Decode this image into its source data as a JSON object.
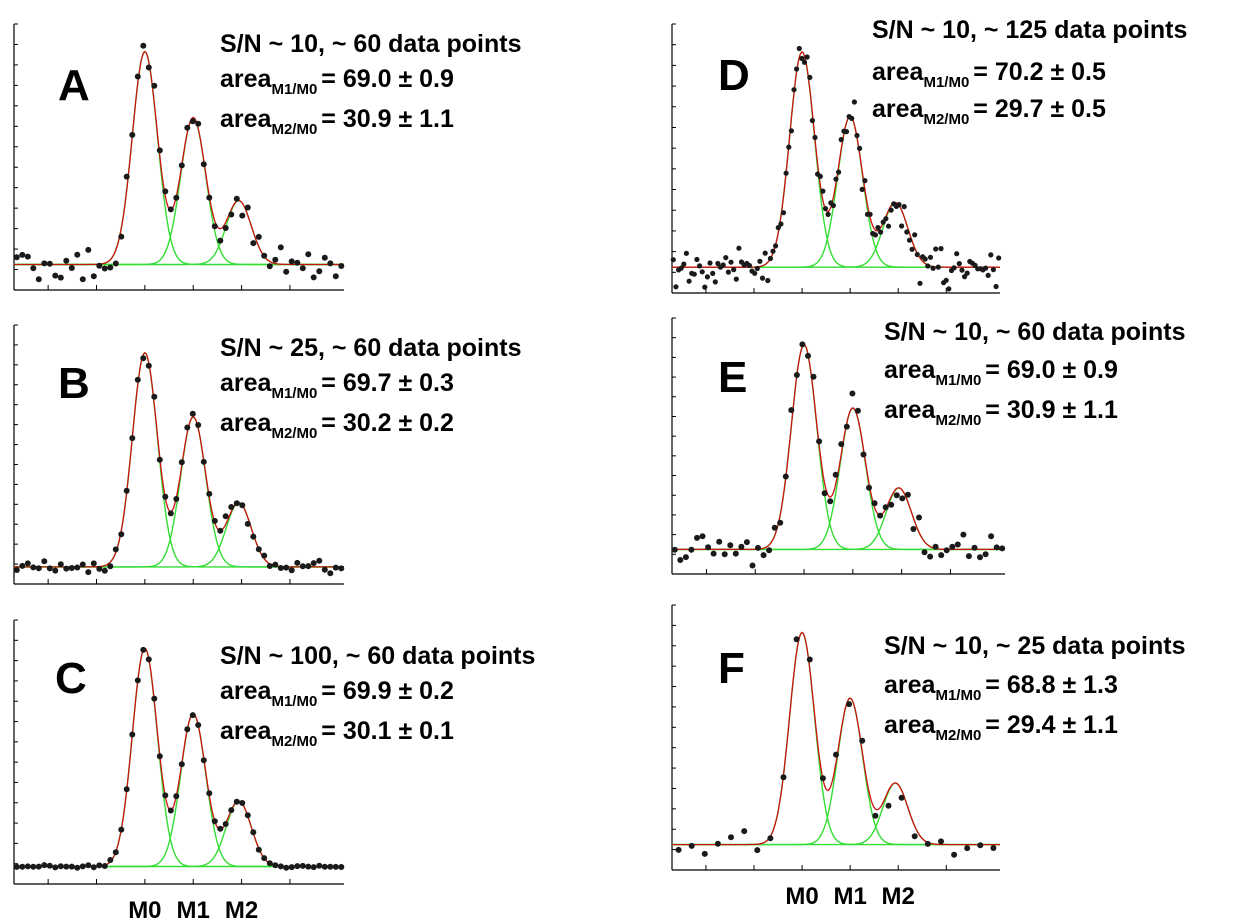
{
  "chart_data": [
    {
      "type": "line",
      "panel_label": "A",
      "x_categories": [
        "",
        "",
        "",
        "",
        "",
        ""
      ],
      "annotation": "S/N ~ 10, ~ 60 data points",
      "stats": [
        {
          "prefix": "area",
          "sub": "M1/M0",
          "value": "= 69.0 ± 0.9"
        },
        {
          "prefix": "area",
          "sub": "M2/M0",
          "value": "= 30.9 ± 1.1"
        }
      ],
      "peaks": [
        {
          "center": 0.0,
          "height": 1.0
        },
        {
          "center": 0.85,
          "height": 0.69
        },
        {
          "center": 1.65,
          "height": 0.3
        }
      ],
      "peak_sigma": 0.22,
      "noise": 0.038,
      "points": 60,
      "xlim": [
        -2.3,
        3.5
      ],
      "ylim": [
        -0.12,
        1.13
      ]
    },
    {
      "type": "line",
      "panel_label": "B",
      "x_categories": [
        "",
        "",
        "",
        "",
        "",
        ""
      ],
      "annotation": "S/N ~ 25, ~ 60 data points",
      "stats": [
        {
          "prefix": "area",
          "sub": "M1/M0",
          "value": "= 69.7 ± 0.3"
        },
        {
          "prefix": "area",
          "sub": "M2/M0",
          "value": "= 30.2 ± 0.2"
        }
      ],
      "peaks": [
        {
          "center": 0.0,
          "height": 1.0
        },
        {
          "center": 0.85,
          "height": 0.7
        },
        {
          "center": 1.65,
          "height": 0.3
        }
      ],
      "peak_sigma": 0.22,
      "noise": 0.015,
      "points": 60,
      "xlim": [
        -2.3,
        3.5
      ],
      "ylim": [
        -0.08,
        1.13
      ]
    },
    {
      "type": "line",
      "panel_label": "C",
      "x_categories": [
        "M0",
        "M1",
        "M2"
      ],
      "annotation": "S/N ~ 100, ~ 60 data points",
      "stats": [
        {
          "prefix": "area",
          "sub": "M1/M0",
          "value": "= 69.9 ± 0.2"
        },
        {
          "prefix": "area",
          "sub": "M2/M0",
          "value": "= 30.1 ± 0.1"
        }
      ],
      "peaks": [
        {
          "center": 0.0,
          "height": 1.0
        },
        {
          "center": 0.85,
          "height": 0.7
        },
        {
          "center": 1.65,
          "height": 0.3
        }
      ],
      "peak_sigma": 0.22,
      "noise": 0.004,
      "points": 60,
      "xlim": [
        -2.3,
        3.5
      ],
      "ylim": [
        -0.08,
        1.13
      ]
    },
    {
      "type": "line",
      "panel_label": "D",
      "x_categories": [
        "",
        "",
        "",
        "",
        "",
        ""
      ],
      "annotation": "S/N ~ 10, ~ 125 data points",
      "stats": [
        {
          "prefix": "area",
          "sub": "M1/M0",
          "value": "= 70.2 ± 0.5"
        },
        {
          "prefix": "area",
          "sub": "M2/M0",
          "value": "= 29.7 ± 0.5"
        }
      ],
      "peaks": [
        {
          "center": 0.0,
          "height": 1.0
        },
        {
          "center": 0.85,
          "height": 0.7
        },
        {
          "center": 1.65,
          "height": 0.3
        }
      ],
      "peak_sigma": 0.22,
      "noise": 0.038,
      "points": 125,
      "xlim": [
        -2.3,
        3.5
      ],
      "ylim": [
        -0.12,
        1.13
      ]
    },
    {
      "type": "line",
      "panel_label": "E",
      "x_categories": [
        "",
        "",
        "",
        "",
        "",
        ""
      ],
      "annotation": "S/N ~ 10, ~ 60 data points",
      "stats": [
        {
          "prefix": "area",
          "sub": "M1/M0",
          "value": "= 69.0 ± 0.9"
        },
        {
          "prefix": "area",
          "sub": "M2/M0",
          "value": "= 30.9 ± 1.1"
        }
      ],
      "peaks": [
        {
          "center": 0.0,
          "height": 1.0
        },
        {
          "center": 0.85,
          "height": 0.69
        },
        {
          "center": 1.65,
          "height": 0.3
        }
      ],
      "peak_sigma": 0.22,
      "noise": 0.038,
      "points": 60,
      "xlim": [
        -2.3,
        3.5
      ],
      "ylim": [
        -0.12,
        1.13
      ]
    },
    {
      "type": "line",
      "panel_label": "F",
      "x_categories": [
        "M0",
        "M1",
        "M2"
      ],
      "annotation": "S/N ~ 10, ~ 25 data points",
      "stats": [
        {
          "prefix": "area",
          "sub": "M1/M0",
          "value": "= 68.8 ± 1.3"
        },
        {
          "prefix": "area",
          "sub": "M2/M0",
          "value": "= 29.4 ± 1.1"
        }
      ],
      "peaks": [
        {
          "center": 0.0,
          "height": 1.0
        },
        {
          "center": 0.85,
          "height": 0.69
        },
        {
          "center": 1.65,
          "height": 0.29
        }
      ],
      "peak_sigma": 0.22,
      "noise": 0.038,
      "points": 25,
      "xlim": [
        -2.3,
        3.5
      ],
      "ylim": [
        -0.12,
        1.13
      ]
    }
  ],
  "colors": {
    "points": "#1a1a1a",
    "component_fit": "#33dd33",
    "total_fit": "#cc1111",
    "axis": "#000000"
  }
}
